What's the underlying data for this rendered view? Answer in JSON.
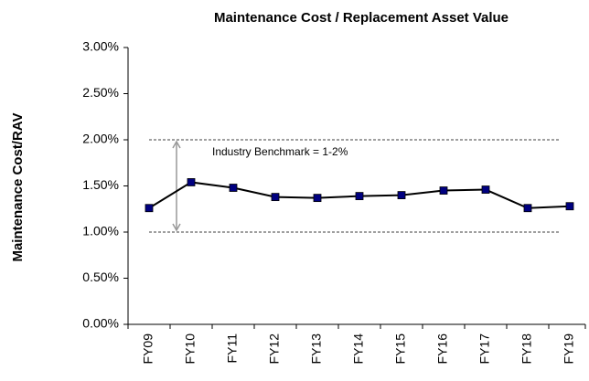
{
  "chart_data": {
    "type": "line",
    "title": "Maintenance Cost / Replacement Asset Value",
    "y_label": "Maintenance Cost/RAV",
    "categories": [
      "FY09",
      "FY10",
      "FY11",
      "FY12",
      "FY13",
      "FY14",
      "FY15",
      "FY16",
      "FY17",
      "FY18",
      "FY19"
    ],
    "values": [
      1.26,
      1.54,
      1.48,
      1.38,
      1.37,
      1.39,
      1.4,
      1.45,
      1.46,
      1.26,
      1.28
    ],
    "color": "#000080",
    "ylim": [
      0,
      3
    ],
    "yticks": [
      {
        "value": 0,
        "label": "0.00%"
      },
      {
        "value": 0.5,
        "label": "0.50%"
      },
      {
        "value": 1,
        "label": "1.00%"
      },
      {
        "value": 1.5,
        "label": "1.50%"
      },
      {
        "value": 2,
        "label": "2.00%"
      },
      {
        "value": 2.5,
        "label": "2.50%"
      },
      {
        "value": 3,
        "label": "3.00%"
      }
    ],
    "benchmark": {
      "label": "Industry Benchmark = 1-2%",
      "lower": 1,
      "upper": 2
    }
  }
}
